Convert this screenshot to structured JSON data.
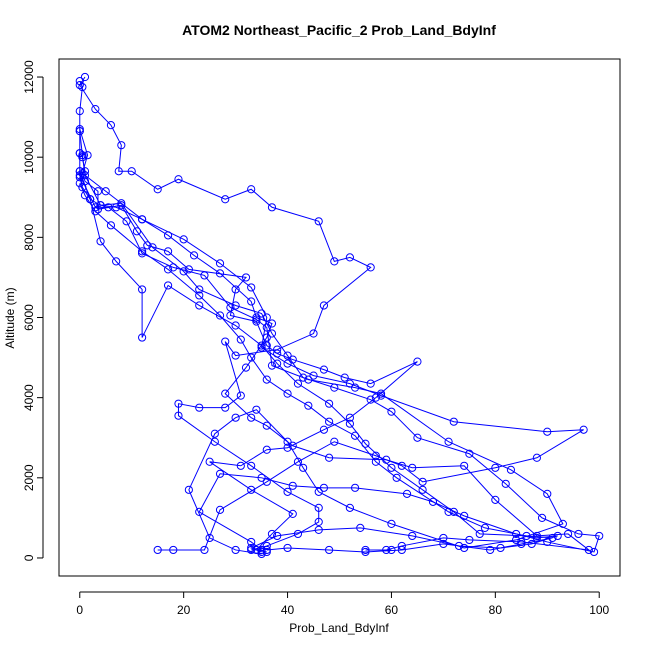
{
  "chart_data": {
    "type": "scatter",
    "title": "ATOM2 Northeast_Pacific_2 Prob_Land_BdyInf",
    "xlabel": "Prob_Land_BdyInf",
    "ylabel": "Altitude (m)",
    "xlim": [
      -4,
      104
    ],
    "ylim": [
      -450,
      12450
    ],
    "xticks": [
      0,
      20,
      40,
      60,
      80,
      100
    ],
    "yticks": [
      0,
      2000,
      4000,
      6000,
      8000,
      10000,
      12000
    ],
    "grid": false,
    "legend": "none",
    "marker": "open-circle",
    "connected": true,
    "color": "#0000ff",
    "series": [
      {
        "points": [
          [
            0.0,
            11900
          ],
          [
            0.5,
            11750
          ],
          [
            0.0,
            11150
          ],
          [
            0.0,
            10650
          ],
          [
            0.0,
            10100
          ],
          [
            0.5,
            10000
          ],
          [
            1.0,
            9650
          ],
          [
            0.0,
            9500
          ],
          [
            0.5,
            9250
          ],
          [
            2.0,
            8950
          ],
          [
            4.0,
            8800
          ],
          [
            7.0,
            8750
          ],
          [
            12.0,
            8450
          ],
          [
            20.0,
            7950
          ],
          [
            27.0,
            7350
          ],
          [
            33.0,
            6750
          ],
          [
            36.0,
            6000
          ],
          [
            35.0,
            5250
          ],
          [
            40.0,
            4850
          ],
          [
            45.0,
            4550
          ],
          [
            52.0,
            4350
          ],
          [
            58.0,
            4050
          ],
          [
            72.0,
            3400
          ],
          [
            90.0,
            3150
          ],
          [
            97.0,
            3200
          ],
          [
            88.0,
            2500
          ],
          [
            80.0,
            2250
          ],
          [
            66.0,
            1900
          ],
          [
            62.0,
            2300
          ],
          [
            57.0,
            2550
          ],
          [
            49.0,
            2900
          ],
          [
            42.0,
            2400
          ],
          [
            36.0,
            1900
          ],
          [
            27.0,
            1200
          ],
          [
            24.0,
            200
          ],
          [
            18.0,
            200
          ],
          [
            15.0,
            200
          ]
        ]
      },
      {
        "points": [
          [
            1.0,
            12000
          ],
          [
            0.0,
            11800
          ],
          [
            3.0,
            11200
          ],
          [
            6.0,
            10800
          ],
          [
            8.0,
            10300
          ],
          [
            7.5,
            9650
          ],
          [
            10.0,
            9650
          ],
          [
            15.0,
            9200
          ],
          [
            19.0,
            9450
          ],
          [
            28.0,
            8950
          ],
          [
            33.0,
            9200
          ],
          [
            37.0,
            8750
          ],
          [
            46.0,
            8400
          ],
          [
            49.0,
            7400
          ],
          [
            52.0,
            7500
          ],
          [
            56.0,
            7250
          ],
          [
            47.0,
            6300
          ],
          [
            45.0,
            5600
          ],
          [
            38.0,
            5200
          ],
          [
            30.0,
            5050
          ],
          [
            28.0,
            5400
          ],
          [
            31.0,
            4050
          ],
          [
            28.0,
            3750
          ],
          [
            23.0,
            3750
          ],
          [
            19.0,
            3850
          ],
          [
            19.0,
            3550
          ],
          [
            26.0,
            2900
          ],
          [
            33.0,
            2300
          ],
          [
            40.0,
            1650
          ],
          [
            46.0,
            1250
          ],
          [
            46.0,
            900
          ],
          [
            42.0,
            600
          ],
          [
            36.0,
            300
          ],
          [
            33.0,
            200
          ]
        ]
      },
      {
        "points": [
          [
            0.0,
            10700
          ],
          [
            1.5,
            10050
          ],
          [
            0.5,
            9600
          ],
          [
            1.0,
            9400
          ],
          [
            3.5,
            9150
          ],
          [
            3.5,
            8700
          ],
          [
            8.0,
            8800
          ],
          [
            11.0,
            8150
          ],
          [
            13.0,
            7800
          ],
          [
            17.0,
            7650
          ],
          [
            21.0,
            7200
          ],
          [
            32.0,
            7000
          ],
          [
            30.0,
            6700
          ],
          [
            29.0,
            6050
          ],
          [
            34.0,
            5900
          ],
          [
            36.0,
            5300
          ],
          [
            38.0,
            5100
          ],
          [
            41.0,
            4950
          ],
          [
            47.0,
            4700
          ],
          [
            51.0,
            4500
          ],
          [
            56.0,
            4350
          ],
          [
            65.0,
            4900
          ],
          [
            57.0,
            4000
          ],
          [
            52.0,
            3500
          ],
          [
            47.0,
            3200
          ],
          [
            40.0,
            2750
          ],
          [
            36.0,
            2700
          ],
          [
            31.0,
            2300
          ],
          [
            25.0,
            2400
          ],
          [
            33.0,
            1700
          ],
          [
            41.0,
            1100
          ],
          [
            37.0,
            600
          ],
          [
            34.0,
            200
          ],
          [
            36.0,
            150
          ]
        ]
      },
      {
        "points": [
          [
            0.0,
            10650
          ],
          [
            0.5,
            10050
          ],
          [
            1.0,
            9550
          ],
          [
            4.0,
            8800
          ],
          [
            8.0,
            8850
          ],
          [
            14.0,
            7750
          ],
          [
            20.0,
            7150
          ],
          [
            23.0,
            6700
          ],
          [
            30.0,
            6300
          ],
          [
            35.0,
            6100
          ],
          [
            37.0,
            5600
          ],
          [
            40.0,
            5050
          ],
          [
            43.0,
            4500
          ],
          [
            49.0,
            4250
          ],
          [
            56.0,
            3950
          ],
          [
            60.0,
            3650
          ],
          [
            65.0,
            3000
          ],
          [
            75.0,
            2600
          ],
          [
            82.0,
            1850
          ],
          [
            89.0,
            1000
          ],
          [
            96.0,
            600
          ],
          [
            100.0,
            550
          ],
          [
            99.0,
            150
          ],
          [
            90.0,
            400
          ],
          [
            84.0,
            600
          ],
          [
            74.0,
            1050
          ],
          [
            68.0,
            1400
          ],
          [
            63.0,
            1600
          ],
          [
            53.0,
            1750
          ],
          [
            47.0,
            1750
          ],
          [
            41.0,
            1800
          ],
          [
            35.0,
            2000
          ],
          [
            27.0,
            2100
          ],
          [
            23.0,
            1150
          ],
          [
            33.0,
            400
          ],
          [
            35.0,
            200
          ]
        ]
      },
      {
        "points": [
          [
            0.0,
            9650
          ],
          [
            5.0,
            9150
          ],
          [
            12.0,
            8450
          ],
          [
            17.0,
            8050
          ],
          [
            22.0,
            7550
          ],
          [
            27.0,
            7100
          ],
          [
            33.0,
            6400
          ],
          [
            34.0,
            6000
          ],
          [
            37.0,
            5850
          ],
          [
            36.0,
            5500
          ],
          [
            32.0,
            4750
          ],
          [
            28.0,
            4100
          ],
          [
            33.0,
            3500
          ],
          [
            36.0,
            3300
          ],
          [
            41.0,
            2800
          ],
          [
            48.0,
            2500
          ],
          [
            59.0,
            2450
          ],
          [
            64.0,
            2250
          ],
          [
            74.0,
            2300
          ],
          [
            80.0,
            1450
          ],
          [
            88.0,
            550
          ],
          [
            94.0,
            600
          ],
          [
            98.0,
            200
          ],
          [
            85.0,
            400
          ],
          [
            75.0,
            450
          ],
          [
            70.0,
            500
          ],
          [
            62.0,
            300
          ],
          [
            59.0,
            200
          ],
          [
            60.0,
            200
          ],
          [
            55.0,
            200
          ]
        ]
      },
      {
        "points": [
          [
            0.0,
            10100
          ],
          [
            0.0,
            9550
          ],
          [
            3.0,
            8750
          ],
          [
            5.5,
            8750
          ],
          [
            9.0,
            8400
          ],
          [
            12.0,
            7600
          ],
          [
            18.0,
            7250
          ],
          [
            24.0,
            7050
          ],
          [
            29.0,
            6250
          ],
          [
            34.0,
            5950
          ],
          [
            36.0,
            5750
          ],
          [
            37.0,
            4800
          ],
          [
            44.0,
            4450
          ],
          [
            53.0,
            4250
          ],
          [
            58.0,
            4100
          ],
          [
            71.0,
            2900
          ],
          [
            83.0,
            2200
          ],
          [
            90.0,
            1600
          ],
          [
            93.0,
            850
          ],
          [
            84.0,
            450
          ],
          [
            74.0,
            250
          ],
          [
            60.0,
            850
          ],
          [
            52.0,
            1250
          ],
          [
            46.0,
            1650
          ],
          [
            43.0,
            2250
          ],
          [
            40.0,
            2900
          ],
          [
            34.0,
            3700
          ],
          [
            30.0,
            3500
          ],
          [
            26.0,
            3100
          ],
          [
            21.0,
            1700
          ],
          [
            25.0,
            500
          ],
          [
            30.0,
            200
          ],
          [
            35.0,
            100
          ]
        ]
      },
      {
        "points": [
          [
            0.0,
            9350
          ],
          [
            1.0,
            9050
          ],
          [
            3.0,
            8650
          ],
          [
            6.0,
            8300
          ],
          [
            12.0,
            7650
          ],
          [
            17.0,
            7200
          ],
          [
            23.0,
            6550
          ],
          [
            27.0,
            6050
          ],
          [
            31.0,
            5450
          ],
          [
            33.0,
            5000
          ],
          [
            36.0,
            4450
          ],
          [
            40.0,
            4100
          ],
          [
            44.0,
            3800
          ],
          [
            48.0,
            3400
          ],
          [
            53.0,
            3050
          ],
          [
            57.0,
            2400
          ],
          [
            61.0,
            2000
          ],
          [
            71.0,
            1150
          ],
          [
            78.0,
            750
          ],
          [
            88.0,
            500
          ],
          [
            92.0,
            550
          ],
          [
            87.0,
            350
          ],
          [
            81.0,
            250
          ],
          [
            73.0,
            300
          ],
          [
            64.0,
            550
          ],
          [
            54.0,
            750
          ],
          [
            46.0,
            700
          ],
          [
            38.0,
            550
          ],
          [
            33.0,
            250
          ],
          [
            35.0,
            150
          ]
        ]
      },
      {
        "points": [
          [
            0.0,
            9650
          ],
          [
            2.0,
            8950
          ],
          [
            4.0,
            7900
          ],
          [
            7.0,
            7400
          ],
          [
            12.0,
            6700
          ],
          [
            12.0,
            5500
          ],
          [
            17.0,
            6800
          ],
          [
            23.0,
            6300
          ],
          [
            30.0,
            5800
          ],
          [
            35.0,
            5300
          ],
          [
            38.0,
            4850
          ],
          [
            42.0,
            4350
          ],
          [
            48.0,
            3850
          ],
          [
            52.0,
            3350
          ],
          [
            55.0,
            2850
          ],
          [
            60.0,
            2250
          ],
          [
            66.0,
            1700
          ],
          [
            72.0,
            1150
          ],
          [
            77.0,
            600
          ],
          [
            86.0,
            550
          ],
          [
            91.0,
            500
          ],
          [
            85.0,
            350
          ],
          [
            79.0,
            200
          ],
          [
            70.0,
            350
          ],
          [
            62.0,
            200
          ],
          [
            55.0,
            150
          ],
          [
            48.0,
            200
          ],
          [
            40.0,
            250
          ],
          [
            36.0,
            200
          ]
        ]
      }
    ]
  }
}
